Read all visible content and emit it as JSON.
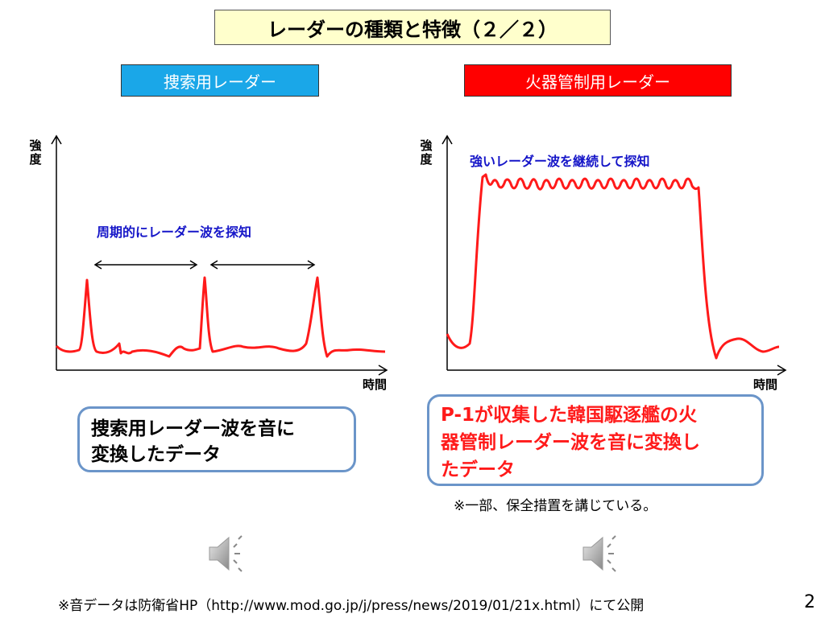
{
  "title": "レーダーの種類と特徴（２／２）",
  "left_panel": {
    "label": "捜索用レーダー",
    "y_axis": "強度",
    "x_axis": "時間",
    "annotation": "周期的にレーダー波を探知",
    "note_line1": "捜索用レーダー波を音に",
    "note_line2": "変換したデータ",
    "speaker_icon": "speaker-icon"
  },
  "right_panel": {
    "label": "火器管制用レーダー",
    "y_axis": "強度",
    "x_axis": "時間",
    "annotation": "強いレーダー波を継続して探知",
    "note_line1": "P-1が収集した韓国駆逐艦の火",
    "note_line2": "器管制レーダー波を音に変換し",
    "note_line3": "たデータ",
    "sub_note": "※一部、保全措置を講じている。",
    "speaker_icon": "speaker-icon"
  },
  "footer": "※音データは防衛省HP（http://www.mod.go.jp/j/press/news/2019/01/21x.html）にて公開",
  "page_number": "2",
  "colors": {
    "title_bg": "#ffffcc",
    "blue_label": "#1aa7e8",
    "red_label": "#ff0000",
    "signal": "#ff1a1a",
    "annotation": "#1515c8",
    "note_border": "#6b95c9"
  }
}
